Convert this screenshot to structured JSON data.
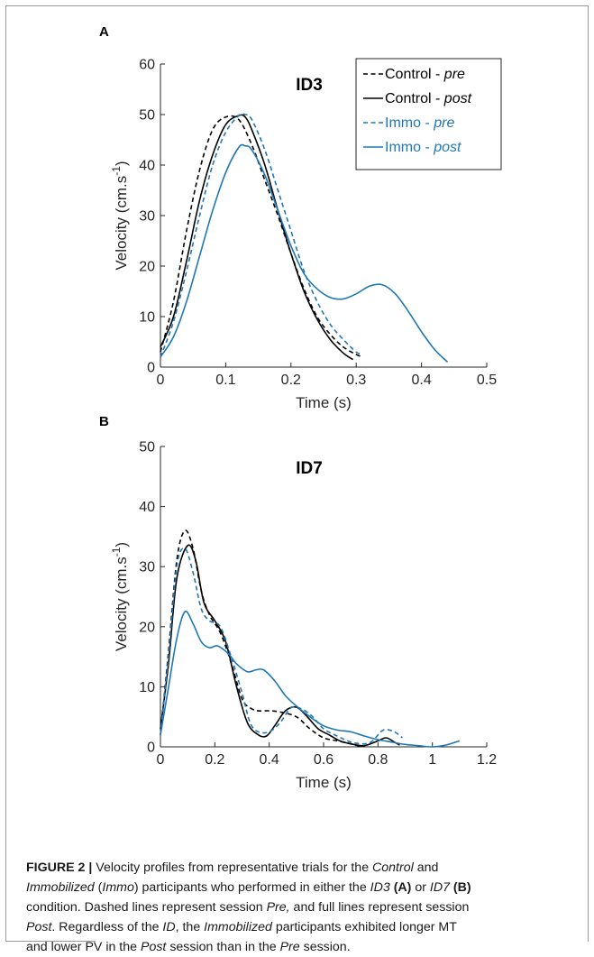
{
  "chart_data": [
    {
      "type": "line",
      "panel_label": "A",
      "title": "ID3",
      "xlabel": "Time (s)",
      "ylabel_main": "Velocity (cm.s",
      "ylabel_sup": "-1",
      "ylabel_close": ")",
      "xlim": [
        0,
        0.5
      ],
      "ylim": [
        0,
        60
      ],
      "xticks": [
        "0",
        "0.1",
        "0.2",
        "0.3",
        "0.4",
        "0.5"
      ],
      "yticks": [
        "0",
        "10",
        "20",
        "30",
        "40",
        "50",
        "60"
      ],
      "grid": false,
      "legend_position": "top-right",
      "series": [
        {
          "name": "Control - ",
          "name_italic": "pre",
          "color": "#000000",
          "dashed": true,
          "x": [
            0,
            0.02,
            0.04,
            0.06,
            0.08,
            0.1,
            0.12,
            0.14,
            0.16,
            0.18,
            0.2,
            0.22,
            0.24,
            0.26,
            0.28,
            0.3,
            0.31
          ],
          "y": [
            3,
            13,
            27,
            39,
            47,
            49.5,
            49,
            44,
            37,
            30,
            22.5,
            15.5,
            10,
            6.5,
            4,
            2.5,
            2
          ]
        },
        {
          "name": "Control - ",
          "name_italic": "post",
          "color": "#000000",
          "dashed": false,
          "x": [
            0,
            0.02,
            0.04,
            0.06,
            0.08,
            0.1,
            0.12,
            0.13,
            0.14,
            0.16,
            0.18,
            0.2,
            0.22,
            0.24,
            0.26,
            0.28,
            0.295
          ],
          "y": [
            4,
            10,
            21,
            33,
            42,
            48,
            49.8,
            49.5,
            47,
            40,
            31,
            22.5,
            15,
            9.5,
            5.5,
            2.8,
            1.5
          ]
        },
        {
          "name": "Immo - ",
          "name_italic": "pre",
          "color": "#1f77b4",
          "dashed": true,
          "x": [
            0,
            0.02,
            0.04,
            0.06,
            0.08,
            0.1,
            0.12,
            0.13,
            0.14,
            0.16,
            0.18,
            0.2,
            0.22,
            0.24,
            0.26,
            0.28,
            0.3,
            0.31
          ],
          "y": [
            2,
            9,
            19,
            30,
            40,
            46.5,
            49.8,
            50,
            49,
            43,
            35,
            27,
            19,
            13,
            8.5,
            5.5,
            3,
            2.5
          ]
        },
        {
          "name": "Immo - ",
          "name_italic": "post",
          "color": "#1f77b4",
          "dashed": false,
          "x": [
            0,
            0.02,
            0.04,
            0.06,
            0.08,
            0.1,
            0.12,
            0.13,
            0.14,
            0.16,
            0.18,
            0.2,
            0.22,
            0.24,
            0.26,
            0.28,
            0.3,
            0.32,
            0.34,
            0.36,
            0.38,
            0.4,
            0.42,
            0.44
          ],
          "y": [
            2,
            6,
            13,
            22,
            31,
            38.5,
            43.5,
            43.8,
            43,
            38,
            31,
            24,
            18.5,
            15.5,
            13.8,
            13.5,
            14.5,
            16,
            16.3,
            14.5,
            11,
            7,
            3.5,
            1
          ]
        }
      ]
    },
    {
      "type": "line",
      "panel_label": "B",
      "title": "ID7",
      "xlabel": "Time (s)",
      "ylabel_main": "Velocity (cm.s",
      "ylabel_sup": "-1",
      "ylabel_close": ")",
      "xlim": [
        0,
        1.2
      ],
      "ylim": [
        0,
        50
      ],
      "xticks": [
        "0",
        "0.2",
        "0.4",
        "0.6",
        "0.8",
        "1",
        "1.2"
      ],
      "yticks": [
        "0",
        "10",
        "20",
        "30",
        "40",
        "50"
      ],
      "grid": false,
      "series": [
        {
          "name": "Control - pre",
          "color": "#000000",
          "dashed": true,
          "x": [
            0,
            0.03,
            0.06,
            0.09,
            0.12,
            0.15,
            0.18,
            0.22,
            0.26,
            0.3,
            0.33,
            0.36,
            0.4,
            0.44,
            0.5,
            0.55,
            0.6,
            0.65,
            0.7,
            0.74
          ],
          "y": [
            2,
            16,
            31,
            36,
            33,
            26,
            22,
            19,
            14,
            8,
            6.5,
            6,
            6,
            5.8,
            5,
            3,
            1.5,
            1,
            0.5,
            0
          ]
        },
        {
          "name": "Control - post",
          "color": "#000000",
          "dashed": false,
          "x": [
            0,
            0.03,
            0.06,
            0.1,
            0.13,
            0.16,
            0.2,
            0.24,
            0.28,
            0.32,
            0.36,
            0.39,
            0.42,
            0.46,
            0.5,
            0.54,
            0.58,
            0.62,
            0.66,
            0.7,
            0.75,
            0.8,
            0.83,
            0.86,
            0.88
          ],
          "y": [
            3,
            14,
            28,
            33.5,
            31,
            24,
            21,
            17.5,
            10,
            4,
            2,
            1.8,
            3.5,
            6,
            6.6,
            5,
            3,
            2,
            1,
            0.5,
            0.2,
            1,
            1.5,
            0.8,
            0.3
          ]
        },
        {
          "name": "Immo - pre",
          "color": "#1f77b4",
          "dashed": true,
          "x": [
            0,
            0.03,
            0.06,
            0.09,
            0.12,
            0.15,
            0.18,
            0.22,
            0.26,
            0.3,
            0.33,
            0.36,
            0.4,
            0.44,
            0.48,
            0.52,
            0.56,
            0.6,
            0.65,
            0.7,
            0.75,
            0.78,
            0.82,
            0.86,
            0.89
          ],
          "y": [
            2,
            15,
            30,
            33,
            29,
            23,
            21,
            20,
            15,
            9,
            4,
            2.5,
            2.5,
            4,
            6.5,
            6.3,
            5,
            3,
            1.8,
            0.8,
            0.5,
            1,
            2.8,
            2.5,
            1.5
          ]
        },
        {
          "name": "Immo - post",
          "color": "#1f77b4",
          "dashed": false,
          "x": [
            0,
            0.03,
            0.06,
            0.09,
            0.12,
            0.15,
            0.18,
            0.21,
            0.25,
            0.28,
            0.32,
            0.35,
            0.38,
            0.42,
            0.46,
            0.5,
            0.55,
            0.6,
            0.65,
            0.7,
            0.75,
            0.8,
            0.85,
            0.9,
            0.95,
            1.0,
            1.05,
            1.1
          ],
          "y": [
            2,
            10,
            18,
            22.5,
            20.5,
            17.5,
            16.5,
            16.8,
            15.5,
            13.8,
            12.5,
            12.8,
            12.8,
            11,
            8.5,
            6.8,
            5,
            3.5,
            2.8,
            2.5,
            1.8,
            1.2,
            0.8,
            0.4,
            0.2,
            0,
            0.3,
            1
          ]
        }
      ]
    }
  ],
  "caption": {
    "fig_label": "FIGURE 2 |",
    "p1": " Velocity profiles from representative trials for the ",
    "i1": "Control",
    "p2": " and",
    "i2": "Immobilized",
    "p3": " (",
    "i3": "Immo",
    "p4": ") participants who performed in either the ",
    "i4": "ID3",
    "b1": "(A)",
    "p5": " or ",
    "i5": "ID7",
    "b2": "(B)",
    "p6": "condition. Dashed lines represent session ",
    "i6": "Pre,",
    "p7": " and full lines represent session",
    "i7": "Post",
    "p8": ". Regardless of the ",
    "i8": "ID",
    "p9": ", the ",
    "i9": "Immobilized",
    "p10": " participants exhibited longer MT",
    "p11": "and lower PV in the ",
    "i10": "Post",
    "p12": " session than in the ",
    "i11": "Pre",
    "p13": " session."
  }
}
